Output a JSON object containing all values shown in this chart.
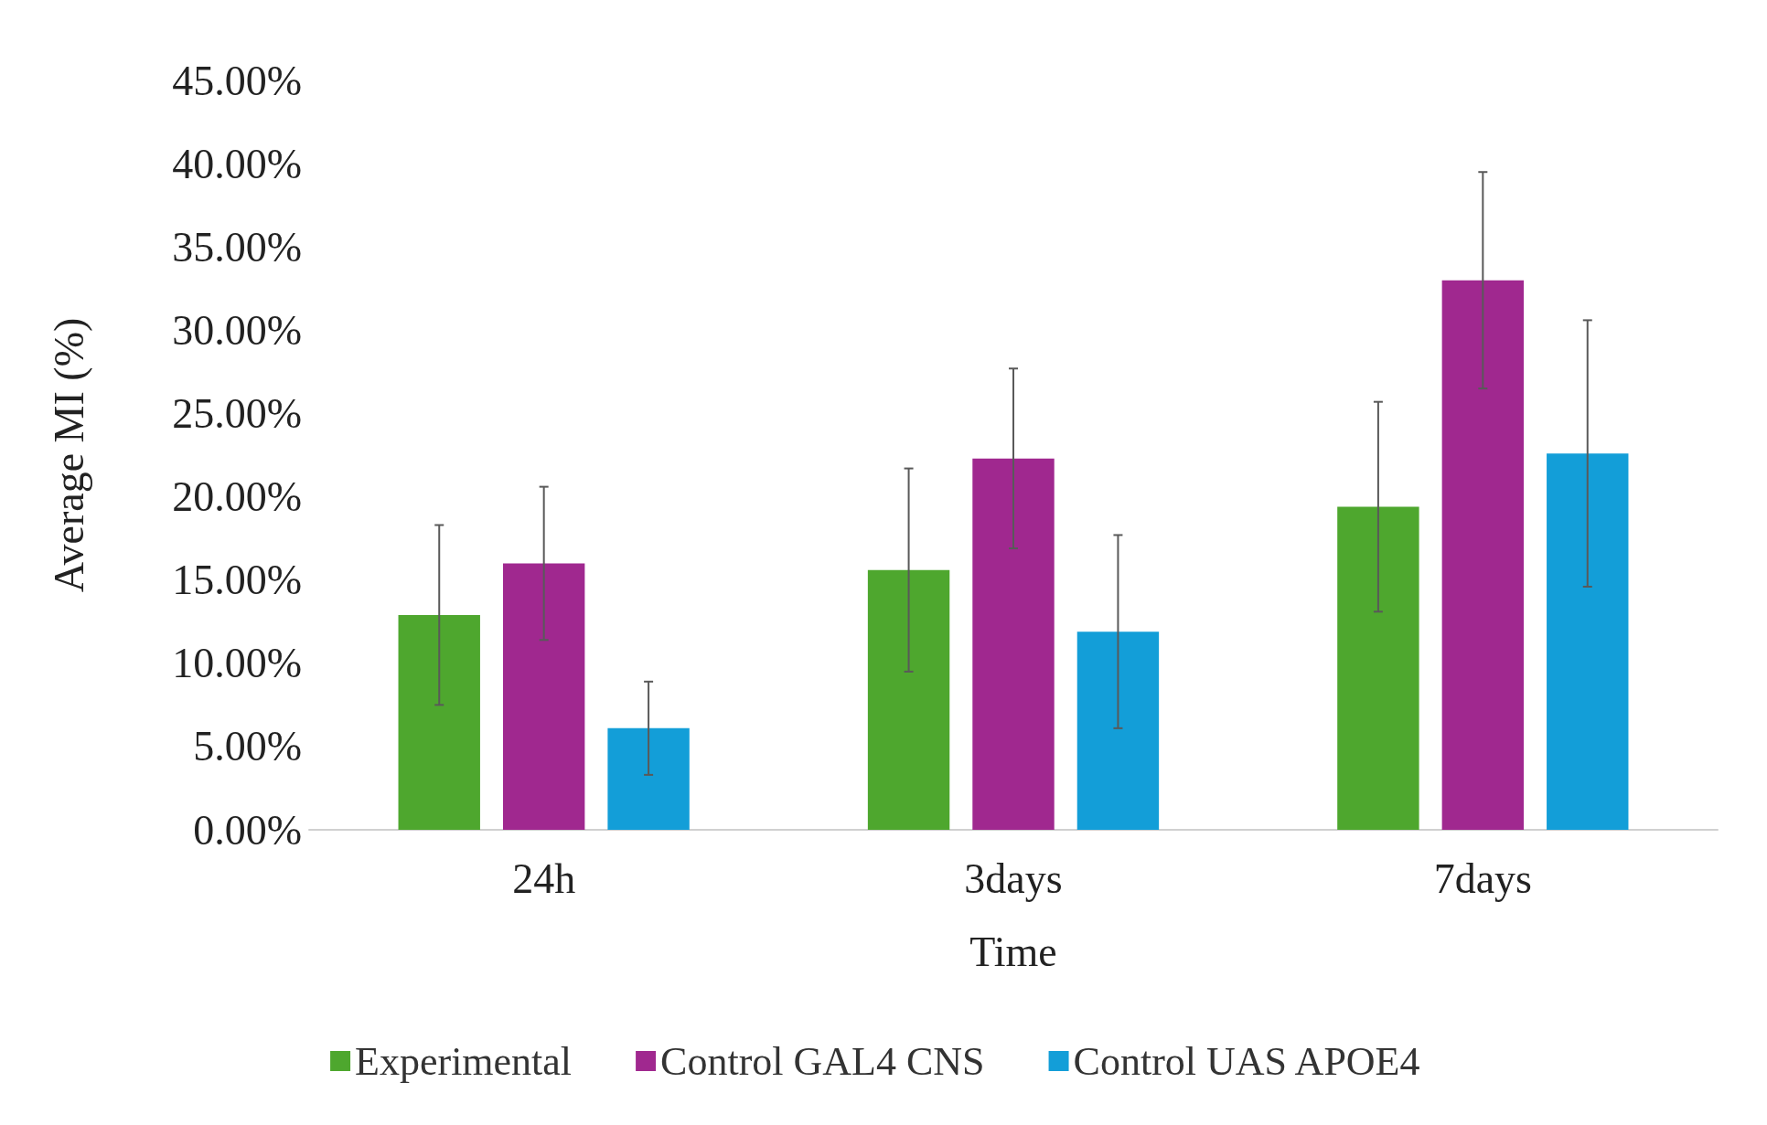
{
  "chart_data": {
    "type": "bar",
    "xlabel": "Time",
    "ylabel": "Average MI (%)",
    "categories": [
      "24h",
      "3days",
      "7days"
    ],
    "series": [
      {
        "name": "Experimental",
        "color": "#4ea72e",
        "values": [
          12.9,
          15.6,
          19.4
        ],
        "errors": [
          5.4,
          6.1,
          6.3
        ]
      },
      {
        "name": "Control GAL4 CNS",
        "color": "#a0288f",
        "values": [
          16.0,
          22.3,
          33.0
        ],
        "errors": [
          4.6,
          5.4,
          6.5
        ]
      },
      {
        "name": "Control UAS APOE4",
        "color": "#139ed8",
        "values": [
          6.1,
          11.9,
          22.6
        ],
        "errors": [
          2.8,
          5.8,
          8.0
        ]
      }
    ],
    "ylim": [
      0,
      45
    ],
    "yticks": [
      {
        "value": 0,
        "label": "0.00%"
      },
      {
        "value": 5,
        "label": "5.00%"
      },
      {
        "value": 10,
        "label": "10.00%"
      },
      {
        "value": 15,
        "label": "15.00%"
      },
      {
        "value": 20,
        "label": "20.00%"
      },
      {
        "value": 25,
        "label": "25.00%"
      },
      {
        "value": 30,
        "label": "30.00%"
      },
      {
        "value": 35,
        "label": "35.00%"
      },
      {
        "value": 40,
        "label": "40.00%"
      },
      {
        "value": 45,
        "label": "45.00%"
      }
    ],
    "grid": false,
    "legend": "bottom"
  }
}
